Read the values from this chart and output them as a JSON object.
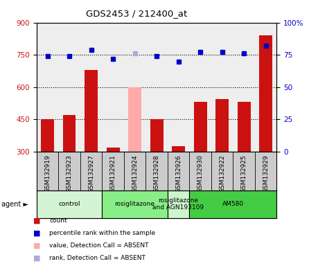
{
  "title": "GDS2453 / 212400_at",
  "samples": [
    "GSM132919",
    "GSM132923",
    "GSM132927",
    "GSM132921",
    "GSM132924",
    "GSM132928",
    "GSM132926",
    "GSM132930",
    "GSM132922",
    "GSM132925",
    "GSM132929"
  ],
  "count_values": [
    450,
    470,
    680,
    320,
    600,
    450,
    325,
    530,
    545,
    530,
    840
  ],
  "count_absent": [
    false,
    false,
    false,
    false,
    true,
    false,
    false,
    false,
    false,
    false,
    false
  ],
  "rank_values": [
    74,
    74,
    79,
    72,
    76,
    74,
    70,
    77,
    77,
    76,
    82
  ],
  "rank_absent": [
    false,
    false,
    false,
    false,
    true,
    false,
    false,
    false,
    false,
    false,
    false
  ],
  "ylim_left": [
    300,
    900
  ],
  "ylim_right": [
    0,
    100
  ],
  "yticks_left": [
    300,
    450,
    600,
    750,
    900
  ],
  "yticks_right": [
    0,
    25,
    50,
    75,
    100
  ],
  "groups": [
    {
      "label": "control",
      "start": 0,
      "end": 3,
      "color": "#d4f5d4"
    },
    {
      "label": "rosiglitazone",
      "start": 3,
      "end": 6,
      "color": "#88ee88"
    },
    {
      "label": "rosiglitazone\nand AGN193109",
      "start": 6,
      "end": 7,
      "color": "#ccf5cc"
    },
    {
      "label": "AM580",
      "start": 7,
      "end": 11,
      "color": "#44cc44"
    }
  ],
  "bar_color_present": "#cc1111",
  "bar_color_absent": "#ffaaaa",
  "rank_color_present": "#0000cc",
  "rank_color_absent": "#aaaadd",
  "bar_width": 0.6,
  "legend_items": [
    {
      "label": "count",
      "color": "#cc1111"
    },
    {
      "label": "percentile rank within the sample",
      "color": "#0000cc"
    },
    {
      "label": "value, Detection Call = ABSENT",
      "color": "#ffaaaa"
    },
    {
      "label": "rank, Detection Call = ABSENT",
      "color": "#aaaadd"
    }
  ]
}
